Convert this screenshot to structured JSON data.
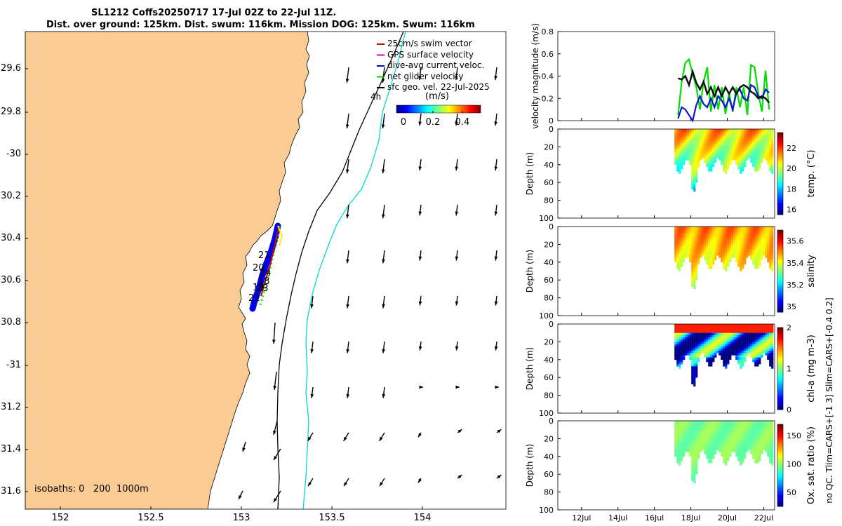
{
  "title": {
    "line1": "SL1212 Coffs20250717 17-Jul 02Z to 22-Jul 11Z.",
    "line2": "Dist. over ground: 125km. Dist. swum: 116km. Mission DOG: 125km. Swum: 116km"
  },
  "map": {
    "lat_ticks": [
      "29.6",
      "29.8",
      "-30",
      "30.2",
      "30.4",
      "30.6",
      "30.8",
      "-31",
      "31.2",
      "31.4",
      "31.6"
    ],
    "lon_ticks": [
      "152",
      "152.5",
      "153",
      "153.5",
      "154"
    ],
    "legend": [
      {
        "label": "25cm/s swim vector",
        "color": "#cc0000"
      },
      {
        "label": "GPS surface velocity",
        "color": "#cc00cc"
      },
      {
        "label": "dive-avg current veloc.",
        "color": "#0000cc"
      },
      {
        "label": "net glider velocity",
        "color": "#00cc00"
      },
      {
        "label": "sfc geo. vel. 22-Jul-2025",
        "color": "#000000"
      }
    ],
    "colorbar_title": "(m/s)",
    "colorbar_ticks": [
      "0",
      "0.2",
      "0.4"
    ],
    "hour_label": "4h",
    "isobaths_label": "isobaths: 0   200  1000m",
    "track_labels": [
      "21",
      "20",
      "24",
      "18",
      "19",
      "23",
      "22"
    ],
    "land_color": "#fbcb94"
  },
  "chart_data": [
    {
      "type": "line",
      "title": "",
      "ylabel": "velocity magnitude (m/s)",
      "ylim": [
        0,
        0.8
      ],
      "yticks": [
        "0",
        "0.2",
        "0.4",
        "0.6",
        "0.8"
      ],
      "series": [
        {
          "name": "net glider velocity",
          "color": "#00dd00",
          "x": [
            17.3,
            17.5,
            17.7,
            17.9,
            18.1,
            18.3,
            18.5,
            18.7,
            18.9,
            19.1,
            19.3,
            19.5,
            19.7,
            19.9,
            20.1,
            20.3,
            20.5,
            20.7,
            20.9,
            21.1,
            21.3,
            21.5,
            21.7,
            21.9,
            22.1,
            22.3
          ],
          "values": [
            0.05,
            0.35,
            0.52,
            0.55,
            0.42,
            0.3,
            0.1,
            0.35,
            0.48,
            0.08,
            0.32,
            0.1,
            0.3,
            0.06,
            0.25,
            0.08,
            0.3,
            0.12,
            0.3,
            0.05,
            0.5,
            0.48,
            0.25,
            0.08,
            0.45,
            0.1
          ]
        },
        {
          "name": "dive-avg current veloc.",
          "color": "#1010dd",
          "x": [
            17.3,
            17.5,
            17.7,
            17.9,
            18.1,
            18.3,
            18.5,
            18.7,
            18.9,
            19.1,
            19.3,
            19.5,
            19.7,
            19.9,
            20.1,
            20.3,
            20.5,
            20.7,
            20.9,
            21.1,
            21.3,
            21.5,
            21.7,
            21.9,
            22.1,
            22.3
          ],
          "values": [
            0.02,
            0.12,
            0.1,
            0.05,
            0.0,
            0.14,
            0.22,
            0.15,
            0.12,
            0.2,
            0.12,
            0.22,
            0.18,
            0.12,
            0.2,
            0.1,
            0.25,
            0.28,
            0.2,
            0.18,
            0.32,
            0.3,
            0.22,
            0.2,
            0.28,
            0.25
          ]
        },
        {
          "name": "sfc geo. vel.",
          "color": "#111111",
          "x": [
            17.3,
            17.5,
            17.7,
            17.9,
            18.1,
            18.3,
            18.5,
            18.7,
            18.9,
            19.1,
            19.3,
            19.5,
            19.7,
            19.9,
            20.1,
            20.3,
            20.5,
            20.7,
            20.9,
            21.1,
            21.3,
            21.5,
            21.7,
            21.9,
            22.1,
            22.3
          ],
          "values": [
            0.38,
            0.37,
            0.4,
            0.32,
            0.44,
            0.34,
            0.28,
            0.35,
            0.24,
            0.3,
            0.22,
            0.3,
            0.22,
            0.3,
            0.24,
            0.3,
            0.24,
            0.3,
            0.32,
            0.3,
            0.26,
            0.24,
            0.2,
            0.22,
            0.2,
            0.16
          ]
        }
      ]
    },
    {
      "type": "heatmap",
      "variable": "temperature",
      "ylabel": "Depth (m)",
      "cbar_label": "temp. (°C)",
      "cbar_ticks": [
        "16",
        "18",
        "20",
        "22"
      ],
      "cbar_range": [
        15.5,
        23.5
      ],
      "ylim": [
        0,
        100
      ],
      "yticks": [
        "0",
        "20",
        "40",
        "60",
        "80",
        "100"
      ],
      "data_start": 17.1,
      "data_end": 22.5
    },
    {
      "type": "heatmap",
      "variable": "salinity",
      "ylabel": "Depth (m)",
      "cbar_label": "salinity",
      "cbar_ticks": [
        "35",
        "35.2",
        "35.4",
        "35.6"
      ],
      "cbar_range": [
        34.95,
        35.7
      ],
      "ylim": [
        0,
        100
      ],
      "yticks": [
        "0",
        "20",
        "40",
        "60",
        "80",
        "100"
      ],
      "data_start": 17.1,
      "data_end": 22.5
    },
    {
      "type": "heatmap",
      "variable": "chl-a",
      "ylabel": "Depth (m)",
      "cbar_label": "chl-a (mg m-3)",
      "cbar_ticks": [
        "0",
        "1",
        "2"
      ],
      "cbar_range": [
        0,
        2
      ],
      "side_note": "no QC. Tlim=CARS+[-1 3] Slim=CARS+[-0.4 0.2]",
      "ylim": [
        0,
        100
      ],
      "yticks": [
        "0",
        "20",
        "40",
        "60",
        "80",
        "100"
      ],
      "data_start": 17.1,
      "data_end": 22.5
    },
    {
      "type": "heatmap",
      "variable": "oxygen",
      "ylabel": "Depth (m)",
      "cbar_label": "Ox. sat. ratio (%)",
      "cbar_ticks": [
        "50",
        "100",
        "150"
      ],
      "cbar_range": [
        25,
        170
      ],
      "ylim": [
        0,
        100
      ],
      "yticks": [
        "0",
        "20",
        "40",
        "60",
        "80",
        "100"
      ],
      "data_start": 17.1,
      "data_end": 22.5,
      "xticks": [
        "12Jul",
        "14Jul",
        "16Jul",
        "18Jul",
        "20Jul",
        "22Jul"
      ],
      "xtick_days": [
        12,
        14,
        16,
        18,
        20,
        22
      ],
      "xlim": [
        10.7,
        22.6
      ]
    }
  ]
}
